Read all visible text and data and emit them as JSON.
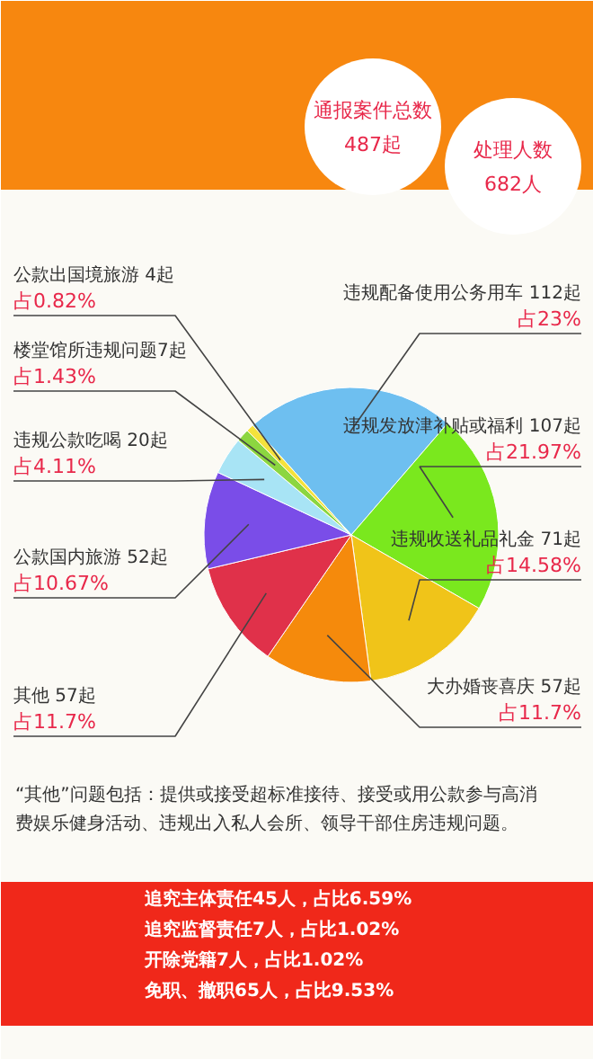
{
  "chart_data": {
    "type": "pie",
    "categories": [
      "违规配备使用公务用车 112起",
      "违规发放津补贴或福利 107起",
      "违规收送礼品礼金 71起",
      "大办婚丧喜庆 57起",
      "其他 57起",
      "公款国内旅游 52起",
      "违规公款吃喝 20起",
      "楼堂馆所违规问题7起",
      "公款出国境旅游 4起"
    ],
    "values": [
      112,
      107,
      71,
      57,
      57,
      52,
      20,
      7,
      4
    ],
    "colors": [
      "#6ebff0",
      "#7ae81e",
      "#f0c419",
      "#f58a0c",
      "#e0314a",
      "#7a4de8",
      "#a8e4f5",
      "#8cd640",
      "#f5e23c"
    ],
    "value_labels": [
      "占23%",
      "占21.97%",
      "占14.58%",
      "占11.7%",
      "占11.7%",
      "占10.67%",
      "占4.11%",
      "占1.43%",
      "占0.82%"
    ],
    "annotations": [
      "通报案件总数",
      "487起",
      "处理人数",
      "682人",
      "“其他”问题包括：提供或接受超标准接待、接受或用公款参与高消费娱乐健身活动、违规出入私人会所、领导干部住房违规问题。",
      "追究主体责任45人，占比6.59%",
      "追究监督责任7人，占比1.02%",
      "开除党籍7人，占比1.02%",
      "免职、撤职65人，占比9.53%"
    ]
  }
}
